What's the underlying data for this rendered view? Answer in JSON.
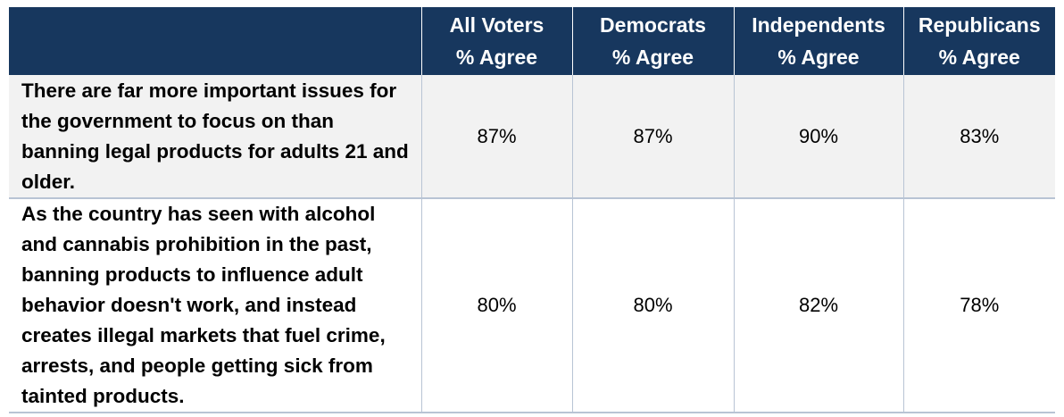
{
  "chart_data": {
    "type": "table",
    "columns": [
      {
        "line1": "All Voters",
        "line2": "% Agree"
      },
      {
        "line1": "Democrats",
        "line2": "% Agree"
      },
      {
        "line1": "Independents",
        "line2": "% Agree"
      },
      {
        "line1": "Republicans",
        "line2": "% Agree"
      }
    ],
    "rows": [
      {
        "statement": "There are far more important issues for the government to focus on than banning legal products for adults 21 and older.",
        "values": [
          "87%",
          "87%",
          "90%",
          "83%"
        ]
      },
      {
        "statement": "As the country has seen with alcohol and cannabis prohibition in the past, banning products to influence adult behavior doesn't work, and instead creates illegal markets that fuel crime, arrests, and people getting sick from tainted products.",
        "values": [
          "80%",
          "80%",
          "82%",
          "78%"
        ]
      }
    ]
  },
  "colors": {
    "header_background": "#17375e",
    "header_text": "#ffffff",
    "row_shading": "#f2f2f2",
    "grid_line": "#b8c4d4"
  }
}
